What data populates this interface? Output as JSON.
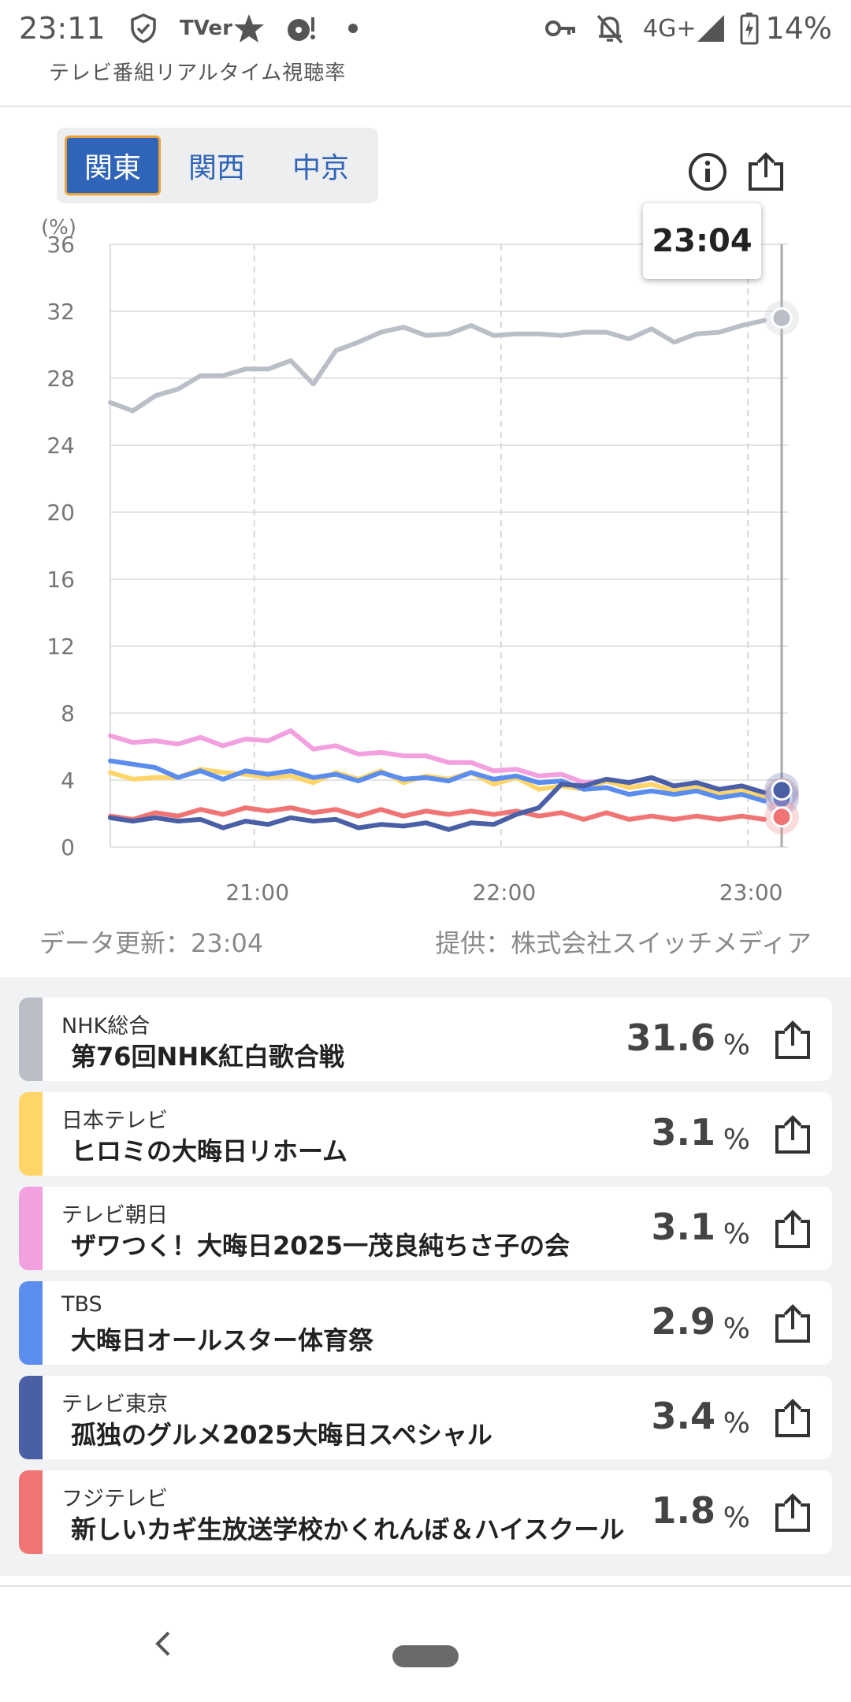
{
  "status_bar": {
    "time": "23:11",
    "icons": [
      "shield-check-icon",
      "tver-icon",
      "star-icon",
      "media-icon",
      "dot-icon",
      "key-icon",
      "bell-off-icon",
      "signal-icon",
      "battery-charging-icon"
    ],
    "tver_text": "TVer",
    "network": "4G+",
    "battery": "14%"
  },
  "header": {
    "title": "テレビ番組リアルタイム視聴率"
  },
  "region_tabs": [
    {
      "label": "関東",
      "active": true
    },
    {
      "label": "関西",
      "active": false
    },
    {
      "label": "中京",
      "active": false
    }
  ],
  "toolbar": {
    "info_icon": "info-icon",
    "share_icon": "share-icon"
  },
  "tooltip": {
    "time": "23:04"
  },
  "chart_data": {
    "type": "line",
    "ylabel": "(%)",
    "y_ticks": [
      "36",
      "32",
      "28",
      "24",
      "20",
      "16",
      "12",
      "8",
      "4",
      "0"
    ],
    "ylim": [
      0,
      36
    ],
    "x_ticks": [
      "21:00",
      "22:00",
      "23:00"
    ],
    "xlim": [
      "20:25",
      "23:04"
    ],
    "grid": true,
    "series": [
      {
        "name": "NHK総合",
        "color": "#b9bec7",
        "last_value": 31.6,
        "values": [
          26.4,
          26.2,
          26.8,
          27.5,
          28.0,
          28.3,
          28.4,
          28.7,
          28.9,
          27.8,
          29.5,
          30.3,
          30.6,
          31.2,
          30.4,
          30.8,
          31.0,
          30.7,
          30.5,
          30.8,
          30.4,
          30.9,
          30.6,
          30.5,
          30.8,
          30.3,
          30.5,
          30.9,
          31.0,
          31.6
        ]
      },
      {
        "name": "日本テレビ",
        "color": "#ffd56a",
        "last_value": 3.1,
        "values": [
          4.3,
          4.2,
          4.0,
          4.3,
          4.5,
          4.6,
          4.2,
          4.3,
          4.1,
          4.0,
          4.3,
          4.2,
          4.4,
          4.0,
          4.1,
          4.2,
          4.3,
          3.9,
          4.0,
          3.6,
          3.5,
          3.6,
          3.8,
          3.7,
          3.6,
          3.5,
          3.4,
          3.3,
          3.2,
          3.1
        ]
      },
      {
        "name": "テレビ朝日",
        "color": "#f2a0e0",
        "last_value": 3.1,
        "values": [
          6.5,
          6.4,
          6.2,
          6.3,
          6.4,
          6.2,
          6.3,
          6.5,
          6.8,
          6.0,
          5.9,
          5.7,
          5.5,
          5.6,
          5.3,
          5.2,
          4.9,
          4.7,
          4.5,
          4.4,
          4.2,
          4.0,
          3.8,
          3.7,
          3.6,
          3.5,
          3.4,
          3.3,
          3.2,
          3.1
        ]
      },
      {
        "name": "TBS",
        "color": "#5b8def",
        "last_value": 2.9,
        "values": [
          5.0,
          5.1,
          4.6,
          4.3,
          4.4,
          4.2,
          4.4,
          4.5,
          4.4,
          4.3,
          4.2,
          4.1,
          4.3,
          4.2,
          4.0,
          4.1,
          4.3,
          4.2,
          4.1,
          4.0,
          3.8,
          3.6,
          3.4,
          3.3,
          3.2,
          3.3,
          3.2,
          3.1,
          3.0,
          2.9
        ]
      },
      {
        "name": "テレビ東京",
        "color": "#4a5fa5",
        "last_value": 3.4,
        "values": [
          1.6,
          1.7,
          1.6,
          1.7,
          1.5,
          1.3,
          1.4,
          1.5,
          1.6,
          1.7,
          1.5,
          1.3,
          1.2,
          1.4,
          1.3,
          1.2,
          1.3,
          1.5,
          1.8,
          2.5,
          3.6,
          3.8,
          3.9,
          4.0,
          4.0,
          3.8,
          3.7,
          3.6,
          3.5,
          3.4
        ]
      },
      {
        "name": "フジテレビ",
        "color": "#f07474",
        "last_value": 1.8,
        "values": [
          1.7,
          1.8,
          1.9,
          2.0,
          2.1,
          2.1,
          2.2,
          2.3,
          2.2,
          2.2,
          2.1,
          2.0,
          2.1,
          2.0,
          2.0,
          2.1,
          2.0,
          2.1,
          2.0,
          2.0,
          1.9,
          1.8,
          1.9,
          1.8,
          1.7,
          1.8,
          1.7,
          1.8,
          1.7,
          1.8
        ]
      }
    ]
  },
  "data_updated": "データ更新：23:04",
  "provider": "提供：株式会社スイッチメディア",
  "programs": [
    {
      "channel": "NHK総合",
      "title": "第76回NHK紅白歌合戦",
      "rating": "31.6",
      "unit": "%",
      "color": "#b9bec7"
    },
    {
      "channel": "日本テレビ",
      "title": "ヒロミの大晦日リホーム",
      "rating": "3.1",
      "unit": "%",
      "color": "#ffd56a"
    },
    {
      "channel": "テレビ朝日",
      "title": "ザワつく！大晦日2025一茂良純ちさ子の会",
      "rating": "3.1",
      "unit": "%",
      "color": "#f2a0e0"
    },
    {
      "channel": "TBS",
      "title": "大晦日オールスター体育祭",
      "rating": "2.9",
      "unit": "%",
      "color": "#5b8def"
    },
    {
      "channel": "テレビ東京",
      "title": "孤独のグルメ2025大晦日スペシャル",
      "rating": "3.4",
      "unit": "%",
      "color": "#4a5fa5"
    },
    {
      "channel": "フジテレビ",
      "title": "新しいカギ生放送学校かくれんぼ＆ハイスクール",
      "rating": "1.8",
      "unit": "%",
      "color": "#f07474"
    }
  ],
  "nav": {
    "back_icon": "back-icon",
    "home_icon": "home-pill-icon"
  }
}
